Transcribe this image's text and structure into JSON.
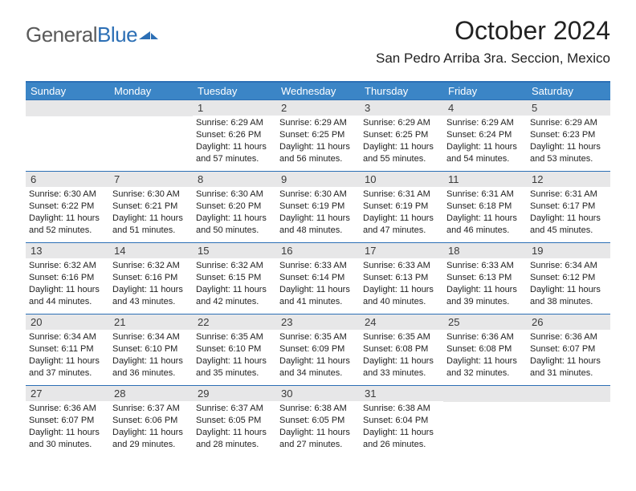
{
  "brand": {
    "part1": "General",
    "part2": "Blue"
  },
  "title": "October 2024",
  "location": "San Pedro Arriba 3ra. Seccion, Mexico",
  "colors": {
    "header_bg": "#3b85c6",
    "rule": "#2c6fb5",
    "daynum_bg": "#e7e7e8",
    "text": "#222222",
    "logo_gray": "#5a5a5a",
    "logo_blue": "#2c6fb5"
  },
  "dow": [
    "Sunday",
    "Monday",
    "Tuesday",
    "Wednesday",
    "Thursday",
    "Friday",
    "Saturday"
  ],
  "weeks": [
    [
      {
        "n": "",
        "sr": "",
        "ss": "",
        "dl": ""
      },
      {
        "n": "",
        "sr": "",
        "ss": "",
        "dl": ""
      },
      {
        "n": "1",
        "sr": "Sunrise: 6:29 AM",
        "ss": "Sunset: 6:26 PM",
        "dl": "Daylight: 11 hours and 57 minutes."
      },
      {
        "n": "2",
        "sr": "Sunrise: 6:29 AM",
        "ss": "Sunset: 6:25 PM",
        "dl": "Daylight: 11 hours and 56 minutes."
      },
      {
        "n": "3",
        "sr": "Sunrise: 6:29 AM",
        "ss": "Sunset: 6:25 PM",
        "dl": "Daylight: 11 hours and 55 minutes."
      },
      {
        "n": "4",
        "sr": "Sunrise: 6:29 AM",
        "ss": "Sunset: 6:24 PM",
        "dl": "Daylight: 11 hours and 54 minutes."
      },
      {
        "n": "5",
        "sr": "Sunrise: 6:29 AM",
        "ss": "Sunset: 6:23 PM",
        "dl": "Daylight: 11 hours and 53 minutes."
      }
    ],
    [
      {
        "n": "6",
        "sr": "Sunrise: 6:30 AM",
        "ss": "Sunset: 6:22 PM",
        "dl": "Daylight: 11 hours and 52 minutes."
      },
      {
        "n": "7",
        "sr": "Sunrise: 6:30 AM",
        "ss": "Sunset: 6:21 PM",
        "dl": "Daylight: 11 hours and 51 minutes."
      },
      {
        "n": "8",
        "sr": "Sunrise: 6:30 AM",
        "ss": "Sunset: 6:20 PM",
        "dl": "Daylight: 11 hours and 50 minutes."
      },
      {
        "n": "9",
        "sr": "Sunrise: 6:30 AM",
        "ss": "Sunset: 6:19 PM",
        "dl": "Daylight: 11 hours and 48 minutes."
      },
      {
        "n": "10",
        "sr": "Sunrise: 6:31 AM",
        "ss": "Sunset: 6:19 PM",
        "dl": "Daylight: 11 hours and 47 minutes."
      },
      {
        "n": "11",
        "sr": "Sunrise: 6:31 AM",
        "ss": "Sunset: 6:18 PM",
        "dl": "Daylight: 11 hours and 46 minutes."
      },
      {
        "n": "12",
        "sr": "Sunrise: 6:31 AM",
        "ss": "Sunset: 6:17 PM",
        "dl": "Daylight: 11 hours and 45 minutes."
      }
    ],
    [
      {
        "n": "13",
        "sr": "Sunrise: 6:32 AM",
        "ss": "Sunset: 6:16 PM",
        "dl": "Daylight: 11 hours and 44 minutes."
      },
      {
        "n": "14",
        "sr": "Sunrise: 6:32 AM",
        "ss": "Sunset: 6:16 PM",
        "dl": "Daylight: 11 hours and 43 minutes."
      },
      {
        "n": "15",
        "sr": "Sunrise: 6:32 AM",
        "ss": "Sunset: 6:15 PM",
        "dl": "Daylight: 11 hours and 42 minutes."
      },
      {
        "n": "16",
        "sr": "Sunrise: 6:33 AM",
        "ss": "Sunset: 6:14 PM",
        "dl": "Daylight: 11 hours and 41 minutes."
      },
      {
        "n": "17",
        "sr": "Sunrise: 6:33 AM",
        "ss": "Sunset: 6:13 PM",
        "dl": "Daylight: 11 hours and 40 minutes."
      },
      {
        "n": "18",
        "sr": "Sunrise: 6:33 AM",
        "ss": "Sunset: 6:13 PM",
        "dl": "Daylight: 11 hours and 39 minutes."
      },
      {
        "n": "19",
        "sr": "Sunrise: 6:34 AM",
        "ss": "Sunset: 6:12 PM",
        "dl": "Daylight: 11 hours and 38 minutes."
      }
    ],
    [
      {
        "n": "20",
        "sr": "Sunrise: 6:34 AM",
        "ss": "Sunset: 6:11 PM",
        "dl": "Daylight: 11 hours and 37 minutes."
      },
      {
        "n": "21",
        "sr": "Sunrise: 6:34 AM",
        "ss": "Sunset: 6:10 PM",
        "dl": "Daylight: 11 hours and 36 minutes."
      },
      {
        "n": "22",
        "sr": "Sunrise: 6:35 AM",
        "ss": "Sunset: 6:10 PM",
        "dl": "Daylight: 11 hours and 35 minutes."
      },
      {
        "n": "23",
        "sr": "Sunrise: 6:35 AM",
        "ss": "Sunset: 6:09 PM",
        "dl": "Daylight: 11 hours and 34 minutes."
      },
      {
        "n": "24",
        "sr": "Sunrise: 6:35 AM",
        "ss": "Sunset: 6:08 PM",
        "dl": "Daylight: 11 hours and 33 minutes."
      },
      {
        "n": "25",
        "sr": "Sunrise: 6:36 AM",
        "ss": "Sunset: 6:08 PM",
        "dl": "Daylight: 11 hours and 32 minutes."
      },
      {
        "n": "26",
        "sr": "Sunrise: 6:36 AM",
        "ss": "Sunset: 6:07 PM",
        "dl": "Daylight: 11 hours and 31 minutes."
      }
    ],
    [
      {
        "n": "27",
        "sr": "Sunrise: 6:36 AM",
        "ss": "Sunset: 6:07 PM",
        "dl": "Daylight: 11 hours and 30 minutes."
      },
      {
        "n": "28",
        "sr": "Sunrise: 6:37 AM",
        "ss": "Sunset: 6:06 PM",
        "dl": "Daylight: 11 hours and 29 minutes."
      },
      {
        "n": "29",
        "sr": "Sunrise: 6:37 AM",
        "ss": "Sunset: 6:05 PM",
        "dl": "Daylight: 11 hours and 28 minutes."
      },
      {
        "n": "30",
        "sr": "Sunrise: 6:38 AM",
        "ss": "Sunset: 6:05 PM",
        "dl": "Daylight: 11 hours and 27 minutes."
      },
      {
        "n": "31",
        "sr": "Sunrise: 6:38 AM",
        "ss": "Sunset: 6:04 PM",
        "dl": "Daylight: 11 hours and 26 minutes."
      },
      {
        "n": "",
        "sr": "",
        "ss": "",
        "dl": ""
      },
      {
        "n": "",
        "sr": "",
        "ss": "",
        "dl": ""
      }
    ]
  ]
}
